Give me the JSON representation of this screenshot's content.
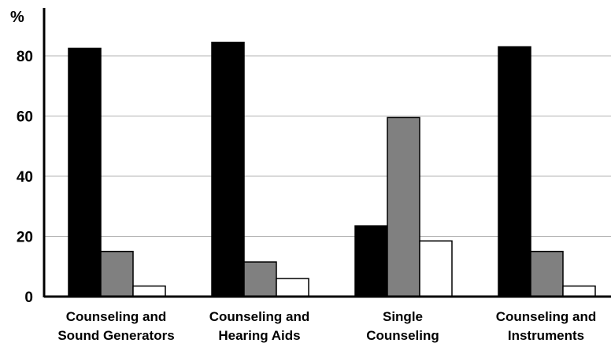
{
  "chart_data": {
    "type": "bar",
    "title": "",
    "xlabel": "",
    "ylabel": "%",
    "ylim": [
      0,
      100
    ],
    "yticks": [
      "0",
      "20",
      "40",
      "60",
      "80"
    ],
    "grid": true,
    "categories": [
      [
        "Counseling and",
        "Sound Generators"
      ],
      [
        "Counseling and",
        "Hearing Aids"
      ],
      [
        "Single",
        "Counseling"
      ],
      [
        "Counseling and",
        "Instruments"
      ]
    ],
    "series": [
      {
        "values": [
          82.5,
          84.5,
          23.5,
          83
        ],
        "color": "#000000"
      },
      {
        "values": [
          15,
          11.5,
          59.5,
          15
        ],
        "color": "#808080"
      },
      {
        "values": [
          3.5,
          6,
          18.5,
          3.5
        ],
        "color": "#ffffff"
      }
    ]
  }
}
